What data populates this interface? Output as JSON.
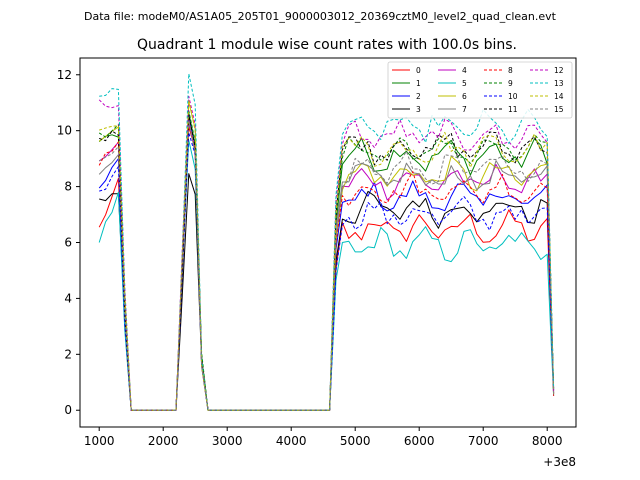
{
  "file_label": "Data file: modeM0/AS1A05_205T01_9000003012_20369cztM0_level2_quad_clean.evt",
  "chart_data": {
    "type": "line",
    "title": "Quadrant 1 module wise count rates with 100.0s bins.",
    "xlabel": "",
    "ylabel": "",
    "x_offset_label": "+3e8",
    "xlim": [
      700,
      8450
    ],
    "ylim": [
      -0.6,
      12.6
    ],
    "xticks": [
      1000,
      2000,
      3000,
      4000,
      5000,
      6000,
      7000,
      8000
    ],
    "yticks": [
      0,
      2,
      4,
      6,
      8,
      10,
      12
    ],
    "x": [
      1000,
      1100,
      1200,
      1300,
      1400,
      1500,
      1600,
      1700,
      1800,
      1900,
      2000,
      2100,
      2200,
      2300,
      2400,
      2500,
      2600,
      2700,
      2800,
      2900,
      3000,
      3100,
      3200,
      3300,
      3400,
      3500,
      3600,
      3700,
      3800,
      3900,
      4000,
      4100,
      4200,
      4300,
      4400,
      4500,
      4600,
      4700,
      4800,
      4900,
      5000,
      5100,
      5200,
      5300,
      5400,
      5500,
      5600,
      5700,
      5800,
      5900,
      6000,
      6100,
      6200,
      6300,
      6400,
      6500,
      6600,
      6700,
      6800,
      6900,
      7000,
      7100,
      7200,
      7300,
      7400,
      7500,
      7600,
      7700,
      7800,
      7900,
      8000,
      8100
    ],
    "legend_placement": "top-right",
    "series": [
      {
        "name": "0",
        "color": "#ff0000",
        "style": "solid",
        "low": 6.5,
        "base": 6.5,
        "peak": 10.2
      },
      {
        "name": "1",
        "color": "#008000",
        "style": "solid",
        "low": 9.6,
        "base": 9.1,
        "peak": 10.6
      },
      {
        "name": "2",
        "color": "#0000ff",
        "style": "solid",
        "low": 7.9,
        "base": 7.6,
        "peak": 10.4
      },
      {
        "name": "3",
        "color": "#000000",
        "style": "solid",
        "low": 7.5,
        "base": 7.2,
        "peak": 8.5
      },
      {
        "name": "4",
        "color": "#bf00bf",
        "style": "solid",
        "low": 9.0,
        "base": 8.2,
        "peak": 10.3
      },
      {
        "name": "5",
        "color": "#00bfbf",
        "style": "solid",
        "low": 6.1,
        "base": 5.9,
        "peak": 9.6
      },
      {
        "name": "6",
        "color": "#bfbf00",
        "style": "solid",
        "low": 9.7,
        "base": 8.4,
        "peak": 11.0
      },
      {
        "name": "7",
        "color": "#808080",
        "style": "solid",
        "low": 8.5,
        "base": 8.3,
        "peak": 10.4
      },
      {
        "name": "8",
        "color": "#ff0000",
        "style": "dashed",
        "low": 8.9,
        "base": 7.9,
        "peak": 10.5
      },
      {
        "name": "9",
        "color": "#008000",
        "style": "dashed",
        "low": 9.8,
        "base": 9.3,
        "peak": 10.8
      },
      {
        "name": "10",
        "color": "#0000ff",
        "style": "dashed",
        "low": 7.7,
        "base": 7.0,
        "peak": 10.0
      },
      {
        "name": "11",
        "color": "#000000",
        "style": "dashed",
        "low": 9.7,
        "base": 9.4,
        "peak": 10.6
      },
      {
        "name": "12",
        "color": "#bf00bf",
        "style": "dashed",
        "low": 11.0,
        "base": 9.8,
        "peak": 11.2
      },
      {
        "name": "13",
        "color": "#00bfbf",
        "style": "dashed",
        "low": 11.3,
        "base": 10.1,
        "peak": 12.0
      },
      {
        "name": "14",
        "color": "#bfbf00",
        "style": "dashed",
        "low": 9.9,
        "base": 9.3,
        "peak": 11.1
      },
      {
        "name": "15",
        "color": "#808080",
        "style": "dashed",
        "low": 8.8,
        "base": 8.6,
        "peak": 10.3
      }
    ]
  }
}
